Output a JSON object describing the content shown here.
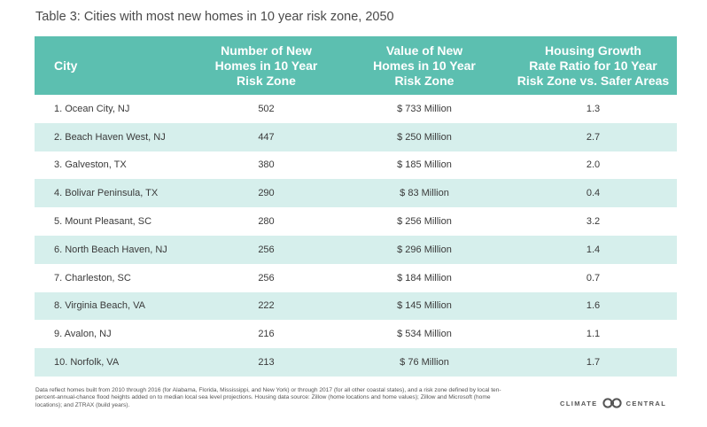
{
  "title": "Table 3: Cities with most new homes in 10 year risk zone, 2050",
  "headers": {
    "city": "City",
    "homes": [
      "Number of New",
      "Homes in 10 Year",
      "Risk Zone"
    ],
    "value": [
      "Value of New",
      "Homes in 10 Year",
      "Risk Zone"
    ],
    "ratio": [
      "Housing Growth",
      "Rate Ratio for 10 Year",
      "Risk Zone vs. Safer Areas"
    ]
  },
  "rows": [
    {
      "city": "1. Ocean City, NJ",
      "homes": "502",
      "value": "$ 733 Million",
      "ratio": "1.3"
    },
    {
      "city": "2. Beach Haven West, NJ",
      "homes": "447",
      "value": "$ 250 Million",
      "ratio": "2.7"
    },
    {
      "city": "3. Galveston, TX",
      "homes": "380",
      "value": "$ 185 Million",
      "ratio": "2.0"
    },
    {
      "city": "4. Bolivar Peninsula, TX",
      "homes": "290",
      "value": "$ 83 Million",
      "ratio": "0.4"
    },
    {
      "city": "5. Mount Pleasant, SC",
      "homes": "280",
      "value": "$ 256 Million",
      "ratio": "3.2"
    },
    {
      "city": "6. North Beach Haven, NJ",
      "homes": "256",
      "value": "$ 296 Million",
      "ratio": "1.4"
    },
    {
      "city": "7. Charleston, SC",
      "homes": "256",
      "value": "$ 184 Million",
      "ratio": "0.7"
    },
    {
      "city": "8. Virginia Beach, VA",
      "homes": "222",
      "value": "$ 145 Million",
      "ratio": "1.6"
    },
    {
      "city": "9. Avalon, NJ",
      "homes": "216",
      "value": "$ 534 Million",
      "ratio": "1.1"
    },
    {
      "city": "10. Norfolk, VA",
      "homes": "213",
      "value": "$ 76 Million",
      "ratio": "1.7"
    }
  ],
  "footnote": "Data reflect homes built from 2010 through 2016 (for Alabama, Florida, Mississippi, and New York) or through 2017 (for all other coastal states), and a risk zone defined by local ten-percent-annual-chance flood heights added on to median local sea level projections. Housing data source: Zillow (home locations and home values); Zillow and Microsoft (home locations); and ZTRAX (build years).",
  "brand": {
    "left": "CLIMATE",
    "right": "CENTRAL",
    "logo_icon": "climate-central-logo-icon"
  },
  "colors": {
    "header": "#5cbfb0",
    "stripe": "#d6efec"
  }
}
